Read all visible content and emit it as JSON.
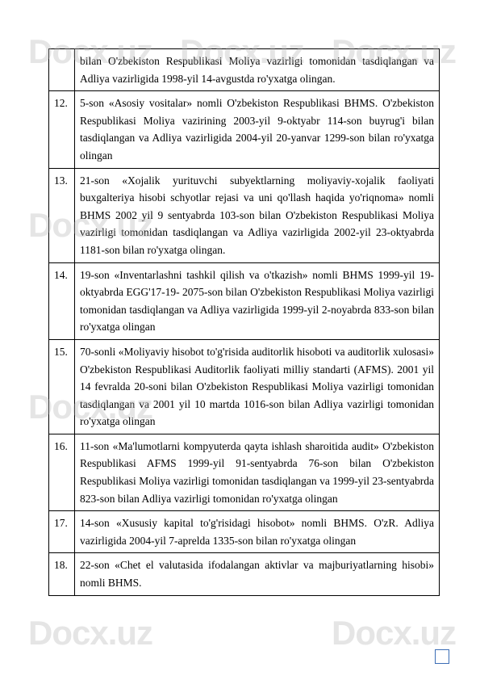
{
  "watermark_text": "Docx.uz",
  "rows": [
    {
      "num": "",
      "text": "bilan O'zbekiston Respublikasi Moliya vazirligi tomonidan tasdiqlangan va Adliya vazirligida 1998-yil 14-avgustda ro'yxatga olingan."
    },
    {
      "num": "12.",
      "text": "5-son «Asosiy vositalar» nomli O'zbekiston Respublikasi BHMS. O'zbekiston Respublikasi Moliya vazirining 2003-yil 9-oktyabr 114-son buyrug'i bilan tasdiqlangan va Adliya vazirligida 2004-yil 20-yanvar 1299-son bilan ro'yxatga olingan"
    },
    {
      "num": "13.",
      "text": "21-son «Xojalik yurituvchi subyektlarning moliyaviy-xojalik faoliyati buxgalteriya hisobi schyotlar rejasi va uni qo'llash haqida yo'riqnoma» nomli BHMS 2002 yil 9 sentyabrda 103-son bilan O'zbekiston Respublikasi Moliya vazirligi tomonidan tasdiqlangan va Adliya vazirligida 2002-yil 23-oktyabrda 1181-son bilan ro'yxatga olingan."
    },
    {
      "num": "14.",
      "text": "19-son «Inventarlashni tashkil qilish va o'tkazish» nomli BHMS 1999-yil 19-oktyabrda EGG'17-19- 2075-son bilan O'zbekiston Respublikasi Moliya vazirligi tomonidan tasdiqlangan va Adliya vazirligida 1999-yil 2-noyabrda 833-son bilan ro'yxatga olingan"
    },
    {
      "num": "15.",
      "text": "70-sonli «Moliyaviy hisobot to'g'risida auditorlik hisoboti va auditorlik xulosasi»\nO'zbekiston Respublikasi Auditorlik faoliyati milliy standarti (AFMS). 2001 yil 14 fevralda 20-soni bilan O'zbekiston Respublikasi Moliya vazirligi tomonidan tasdiqlangan va 2001 yil 10 martda 1016-son bilan Adliya vazirligi tomonidan ro'yxatga olingan"
    },
    {
      "num": "16.",
      "text": "11-son «Ma'lumotlarni kompyuterda qayta ishlash sharoitida audit» O'zbekiston Respublikasi AFMS 1999-yil 91-sentyabrda 76-son bilan O'zbekiston Respublikasi Moliya vazirligi tomonidan tasdiqlangan va 1999-yil 23-sentyabrda 823-son bilan Adliya vazirligi tomonidan ro'yxatga olingan"
    },
    {
      "num": "17.",
      "text": "14-son «Xususiy kapital to'g'risidagi hisobot» nomli BHMS. O'zR. Adliya vazirligida\n2004-yil 7-aprelda 1335-son bilan ro'yxatga olingan"
    },
    {
      "num": "18.",
      "text": "22-son «Chet el valutasida ifodalangan aktivlar va majburiyatlarning hisobi» nomli BHMS."
    }
  ],
  "page_number": "",
  "colors": {
    "watermark": "rgba(180,180,180,0.35)",
    "border": "#000000",
    "page_box": "#3b6db5"
  }
}
